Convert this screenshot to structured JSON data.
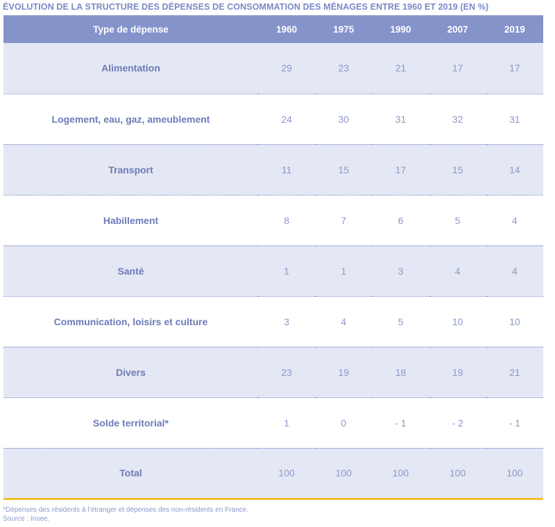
{
  "title": "ÉVOLUTION DE LA STRUCTURE DES DÉPENSES DE CONSOMMATION DES MÉNAGES ENTRE 1960 ET 2019 (EN %)",
  "table": {
    "headers": [
      "Type de dépense",
      "1960",
      "1975",
      "1990",
      "2007",
      "2019"
    ],
    "rows": [
      {
        "label": "Alimentation",
        "values": [
          "29",
          "23",
          "21",
          "17",
          "17"
        ]
      },
      {
        "label": "Logement, eau, gaz, ameublement",
        "values": [
          "24",
          "30",
          "31",
          "32",
          "31"
        ]
      },
      {
        "label": "Transport",
        "values": [
          "11",
          "15",
          "17",
          "15",
          "14"
        ]
      },
      {
        "label": "Habillement",
        "values": [
          "8",
          "7",
          "6",
          "5",
          "4"
        ]
      },
      {
        "label": "Santé",
        "values": [
          "1",
          "1",
          "3",
          "4",
          "4"
        ]
      },
      {
        "label": "Communication, loisirs et culture",
        "values": [
          "3",
          "4",
          "5",
          "10",
          "10"
        ]
      },
      {
        "label": "Divers",
        "values": [
          "23",
          "19",
          "18",
          "19",
          "21"
        ]
      },
      {
        "label": "Solde territorial*",
        "values": [
          "1",
          "0",
          "- 1",
          "- 2",
          "- 1"
        ]
      },
      {
        "label": "Total",
        "values": [
          "100",
          "100",
          "100",
          "100",
          "100"
        ]
      }
    ]
  },
  "notes": {
    "footnote": "*Dépenses des résidents à l’étranger et dépenses des non-résidents en France.",
    "source": "Source : Insee."
  },
  "colors": {
    "header_bg": "#8593cb",
    "row_shade": "#e4e8f4",
    "text_accent": "#6d7ab8",
    "bottom_rule": "#f2c12e"
  }
}
